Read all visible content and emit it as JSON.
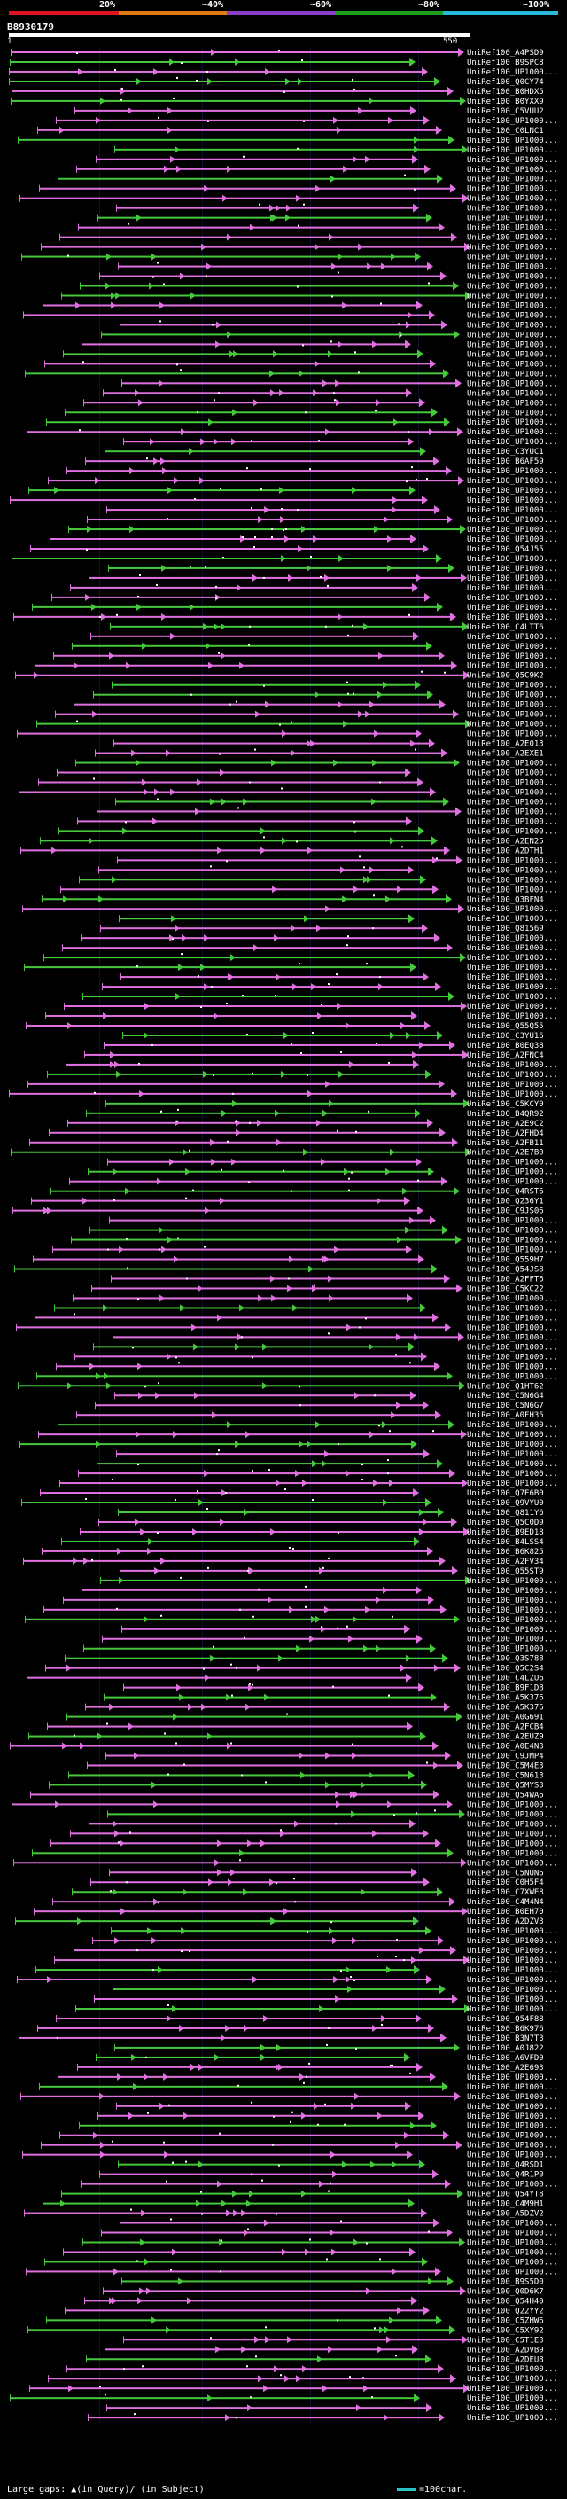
{
  "scale": {
    "labels": [
      "20%",
      "~40%",
      "~60%",
      "~80%",
      "~100%"
    ],
    "colors": [
      "#e0141e",
      "#e07a14",
      "#8c3cc8",
      "#1e9e1e",
      "#2ab8d8"
    ]
  },
  "query": {
    "id": "B8930179",
    "start": "1",
    "end": "550"
  },
  "colors": {
    "magenta": "#e070e0",
    "green": "#46c83c",
    "white": "#ffffff",
    "grid": "#101030"
  },
  "hits": [
    "UniRef100_A4PSD9",
    "UniRef100_B9SPC8",
    "UniRef100_UP1000...",
    "UniRef100_Q0CY74",
    "UniRef100_B0HDX5",
    "UniRef100_B0YXX9",
    "UniRef100_C5VUU2",
    "UniRef100_UP1000...",
    "UniRef100_C0LNC1",
    "UniRef100_UP1000...",
    "UniRef100_UP1000...",
    "UniRef100_UP1000...",
    "UniRef100_UP1000...",
    "UniRef100_UP1000...",
    "UniRef100_UP1000...",
    "UniRef100_UP1000...",
    "UniRef100_UP1000...",
    "UniRef100_UP1000...",
    "UniRef100_UP1000...",
    "UniRef100_UP1000...",
    "UniRef100_UP1000...",
    "UniRef100_UP1000...",
    "UniRef100_UP1000...",
    "UniRef100_UP1000...",
    "UniRef100_UP1000...",
    "UniRef100_UP1000...",
    "UniRef100_UP1000...",
    "UniRef100_UP1000...",
    "UniRef100_UP1000...",
    "UniRef100_UP1000...",
    "UniRef100_UP1000...",
    "UniRef100_UP1000...",
    "UniRef100_UP1000...",
    "UniRef100_UP1000...",
    "UniRef100_UP1000...",
    "UniRef100_UP1000...",
    "UniRef100_UP1000...",
    "UniRef100_UP1000...",
    "UniRef100_UP1000...",
    "UniRef100_UP1000...",
    "UniRef100_UP1000...",
    "UniRef100_C3YUC1",
    "UniRef100_B6AF59",
    "UniRef100_UP1000...",
    "UniRef100_UP1000...",
    "UniRef100_UP1000...",
    "UniRef100_UP1000...",
    "UniRef100_UP1000...",
    "UniRef100_UP1000...",
    "UniRef100_UP1000...",
    "UniRef100_UP1000...",
    "UniRef100_Q54J55",
    "UniRef100_UP1000...",
    "UniRef100_UP1000...",
    "UniRef100_UP1000...",
    "UniRef100_UP1000...",
    "UniRef100_UP1000...",
    "UniRef100_UP1000...",
    "UniRef100_UP1000...",
    "UniRef100_C4LTT6",
    "UniRef100_UP1000...",
    "UniRef100_UP1000...",
    "UniRef100_UP1000...",
    "UniRef100_UP1000...",
    "UniRef100_Q5C9K2",
    "UniRef100_UP1000...",
    "UniRef100_UP1000...",
    "UniRef100_UP1000...",
    "UniRef100_UP1000...",
    "UniRef100_UP1000...",
    "UniRef100_UP1000...",
    "UniRef100_A2E013",
    "UniRef100_A2EXE1",
    "UniRef100_UP1000...",
    "UniRef100_UP1000...",
    "UniRef100_UP1000...",
    "UniRef100_UP1000...",
    "UniRef100_UP1000...",
    "UniRef100_UP1000...",
    "UniRef100_UP1000...",
    "UniRef100_UP1000...",
    "UniRef100_A2EN25",
    "UniRef100_A2DTH1",
    "UniRef100_UP1000...",
    "UniRef100_UP1000...",
    "UniRef100_UP1000...",
    "UniRef100_UP1000...",
    "UniRef100_Q3BFN4",
    "UniRef100_UP1000...",
    "UniRef100_UP1000...",
    "UniRef100_Q81569",
    "UniRef100_UP1000...",
    "UniRef100_UP1000...",
    "UniRef100_UP1000...",
    "UniRef100_UP1000...",
    "UniRef100_UP1000...",
    "UniRef100_UP1000...",
    "UniRef100_UP1000...",
    "UniRef100_UP1000...",
    "UniRef100_UP1000...",
    "UniRef100_Q55Q55",
    "UniRef100_C3YU16",
    "UniRef100_B0EQ38",
    "UniRef100_A2FNC4",
    "UniRef100_UP1000...",
    "UniRef100_UP1000...",
    "UniRef100_UP1000...",
    "UniRef100_UP1000...",
    "UniRef100_C5KCY0",
    "UniRef100_B4QR92",
    "UniRef100_A2E9C2",
    "UniRef100_A2FHD4",
    "UniRef100_A2FB11",
    "UniRef100_A2E7B0",
    "UniRef100_UP1000...",
    "UniRef100_UP1000...",
    "UniRef100_UP1000...",
    "UniRef100_Q4RST6",
    "UniRef100_Q236Y1",
    "UniRef100_C9JS06",
    "UniRef100_UP1000...",
    "UniRef100_UP1000...",
    "UniRef100_UP1000...",
    "UniRef100_UP1000...",
    "UniRef100_Q559H7",
    "UniRef100_Q54JS8",
    "UniRef100_A2FFT6",
    "UniRef100_C5KC22",
    "UniRef100_UP1000...",
    "UniRef100_UP1000...",
    "UniRef100_UP1000...",
    "UniRef100_UP1000...",
    "UniRef100_UP1000...",
    "UniRef100_UP1000...",
    "UniRef100_UP1000...",
    "UniRef100_UP1000...",
    "UniRef100_UP1000...",
    "UniRef100_Q1HT62",
    "UniRef100_C5N6G4",
    "UniRef100_C5N6G7",
    "UniRef100_A0FH35",
    "UniRef100_UP1000...",
    "UniRef100_UP1000...",
    "UniRef100_UP1000...",
    "UniRef100_UP1000...",
    "UniRef100_UP1000...",
    "UniRef100_UP1000...",
    "UniRef100_UP1000...",
    "UniRef100_Q7E6B0",
    "UniRef100_Q9VYU0",
    "UniRef100_Q811Y6",
    "UniRef100_Q5C0D9",
    "UniRef100_B9ED18",
    "UniRef100_B4LSS4",
    "UniRef100_B6K825",
    "UniRef100_A2FV34",
    "UniRef100_Q55ST9",
    "UniRef100_UP1000...",
    "UniRef100_UP1000...",
    "UniRef100_UP1000...",
    "UniRef100_UP1000...",
    "UniRef100_UP1000...",
    "UniRef100_UP1000...",
    "UniRef100_UP1000...",
    "UniRef100_UP1000...",
    "UniRef100_Q3S788",
    "UniRef100_Q5C2S4",
    "UniRef100_C4LZU6",
    "UniRef100_B9F1D8",
    "UniRef100_A5K376",
    "UniRef100_A5K376",
    "UniRef100_A0G691",
    "UniRef100_A2FCB4",
    "UniRef100_A2EUZ9",
    "UniRef100_A0E4N3",
    "UniRef100_C9JMP4",
    "UniRef100_C5M4E3",
    "UniRef100_C5N613",
    "UniRef100_Q5MYS3",
    "UniRef100_Q54WA6",
    "UniRef100_UP1000...",
    "UniRef100_UP1000...",
    "UniRef100_UP1000...",
    "UniRef100_UP1000...",
    "UniRef100_UP1000...",
    "UniRef100_UP1000...",
    "UniRef100_UP1000...",
    "UniRef100_C5NUN6",
    "UniRef100_C0H5F4",
    "UniRef100_C7XWE8",
    "UniRef100_C4M4N4",
    "UniRef100_B0EH70",
    "UniRef100_A2DZV3",
    "UniRef100_UP1000...",
    "UniRef100_UP1000...",
    "UniRef100_UP1000...",
    "UniRef100_UP1000...",
    "UniRef100_UP1000...",
    "UniRef100_UP1000...",
    "UniRef100_UP1000...",
    "UniRef100_UP1000...",
    "UniRef100_UP1000...",
    "UniRef100_Q54F88",
    "UniRef100_B6K976",
    "UniRef100_B3N7T3",
    "UniRef100_A0J822",
    "UniRef100_A6VFD0",
    "UniRef100_A2E693",
    "UniRef100_UP1000...",
    "UniRef100_UP1000...",
    "UniRef100_UP1000...",
    "UniRef100_UP1000...",
    "UniRef100_UP1000...",
    "UniRef100_UP1000...",
    "UniRef100_UP1000...",
    "UniRef100_UP1000...",
    "UniRef100_UP1000...",
    "UniRef100_Q4RSD1",
    "UniRef100_Q4R1P0",
    "UniRef100_UP1000...",
    "UniRef100_Q54YT8",
    "UniRef100_C4M9H1",
    "UniRef100_A5DZV2",
    "UniRef100_UP1000...",
    "UniRef100_UP1000...",
    "UniRef100_UP1000...",
    "UniRef100_UP1000...",
    "UniRef100_UP1000...",
    "UniRef100_UP1000...",
    "UniRef100_B9S5D0",
    "UniRef100_Q0D6K7",
    "UniRef100_Q54H40",
    "UniRef100_Q22YY2",
    "UniRef100_C5ZHW6",
    "UniRef100_C5XY92",
    "UniRef100_C5T1E3",
    "UniRef100_A2DVB9",
    "UniRef100_A2DEU8",
    "UniRef100_UP1000...",
    "UniRef100_UP1000...",
    "UniRef100_UP1000...",
    "UniRef100_UP1000...",
    "UniRef100_UP1000...",
    "UniRef100_UP1000..."
  ],
  "legend": {
    "gaps_text": "Large gaps: ▲(in Query)/⁻(in Subject)",
    "scale_text": "=100char."
  }
}
